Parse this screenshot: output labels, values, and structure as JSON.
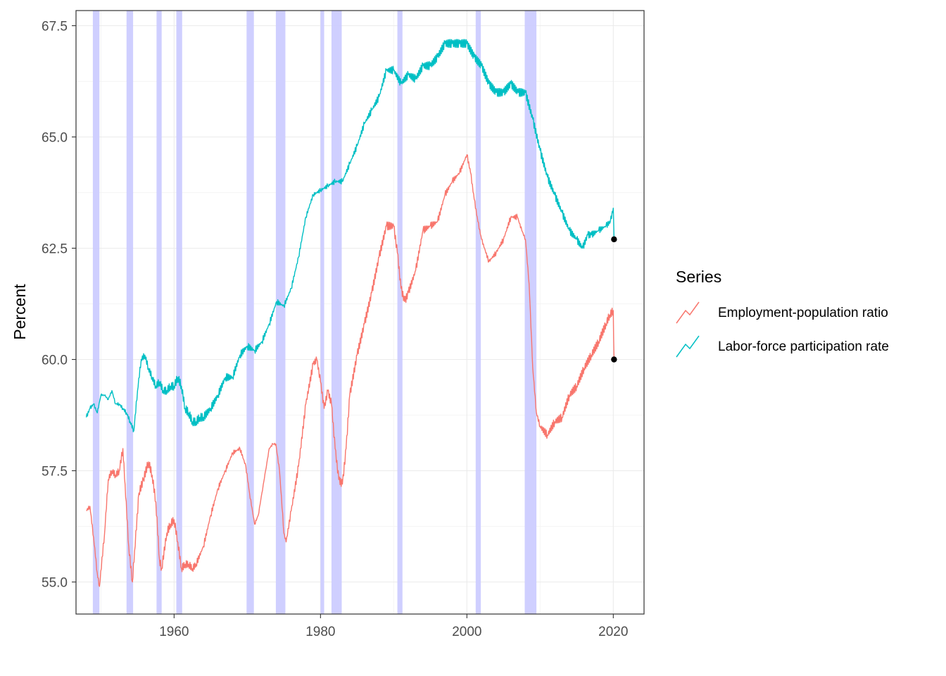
{
  "chart_data": {
    "type": "line",
    "title": "",
    "xlabel": "",
    "ylabel": "Percent",
    "xlim": [
      1946.6,
      2024.2
    ],
    "ylim": [
      54.28,
      67.84
    ],
    "x_ticks": [
      1960,
      1980,
      2000,
      2020
    ],
    "x_tick_labels": [
      "1960",
      "1980",
      "2000",
      "2020"
    ],
    "y_ticks": [
      55.0,
      57.5,
      60.0,
      62.5,
      65.0,
      67.5
    ],
    "y_tick_labels": [
      "55.0",
      "57.5",
      "60.0",
      "62.5",
      "65.0",
      "67.5"
    ],
    "grid": true,
    "legend": {
      "title": "Series",
      "position": "right"
    },
    "recession_color": "#ccccff",
    "recessions": [
      [
        1948.9,
        1949.8
      ],
      [
        1953.5,
        1954.4
      ],
      [
        1957.6,
        1958.3
      ],
      [
        1960.3,
        1961.1
      ],
      [
        1969.9,
        1970.9
      ],
      [
        1973.9,
        1975.2
      ],
      [
        1980.0,
        1980.5
      ],
      [
        1981.5,
        1982.9
      ],
      [
        1990.5,
        1991.2
      ],
      [
        2001.2,
        2001.9
      ],
      [
        2007.9,
        2009.5
      ]
    ],
    "series": [
      {
        "name": "Employment-population ratio",
        "color": "#f8766d",
        "x": [
          1948.0,
          1948.5,
          1949.0,
          1949.5,
          1949.8,
          1950.5,
          1951.0,
          1951.5,
          1952.0,
          1952.5,
          1953.0,
          1953.3,
          1953.8,
          1954.3,
          1954.6,
          1955.2,
          1955.8,
          1956.5,
          1957.0,
          1957.5,
          1958.0,
          1958.3,
          1959.0,
          1959.5,
          1960.0,
          1960.5,
          1961.0,
          1961.5,
          1962.0,
          1962.5,
          1963.0,
          1964.0,
          1965.0,
          1966.0,
          1967.0,
          1968.0,
          1969.0,
          1969.8,
          1970.3,
          1971.0,
          1971.5,
          1972.0,
          1972.5,
          1973.0,
          1973.5,
          1973.9,
          1974.4,
          1975.0,
          1975.3,
          1976.0,
          1977.0,
          1978.0,
          1979.0,
          1979.5,
          1980.0,
          1980.5,
          1981.0,
          1981.5,
          1982.0,
          1982.5,
          1983.0,
          1983.5,
          1984.0,
          1985.0,
          1986.0,
          1987.0,
          1988.0,
          1989.0,
          1990.0,
          1990.5,
          1991.0,
          1991.5,
          1992.0,
          1993.0,
          1994.0,
          1995.0,
          1996.0,
          1997.0,
          1998.0,
          1999.0,
          2000.0,
          2000.5,
          2001.0,
          2001.5,
          2002.0,
          2003.0,
          2004.0,
          2005.0,
          2006.0,
          2006.9,
          2007.5,
          2008.0,
          2008.5,
          2009.0,
          2009.5,
          2010.0,
          2011.0,
          2012.0,
          2013.0,
          2014.0,
          2015.0,
          2016.0,
          2017.0,
          2018.0,
          2019.0,
          2019.5,
          2020.0,
          2020.1
        ],
        "values": [
          56.6,
          56.7,
          56.0,
          55.2,
          54.9,
          56.1,
          57.3,
          57.5,
          57.4,
          57.5,
          58.0,
          57.2,
          55.8,
          55.0,
          55.7,
          57.0,
          57.3,
          57.7,
          57.4,
          56.8,
          55.5,
          55.3,
          56.1,
          56.3,
          56.4,
          55.9,
          55.3,
          55.4,
          55.4,
          55.3,
          55.4,
          55.8,
          56.5,
          57.1,
          57.5,
          57.9,
          58.0,
          57.6,
          57.0,
          56.3,
          56.5,
          57.0,
          57.5,
          58.0,
          58.1,
          58.1,
          57.5,
          56.1,
          55.9,
          56.6,
          57.6,
          59.0,
          59.9,
          60.0,
          59.5,
          58.9,
          59.3,
          59.0,
          58.0,
          57.3,
          57.2,
          58.0,
          59.2,
          60.1,
          60.8,
          61.5,
          62.3,
          63.0,
          63.0,
          62.4,
          61.6,
          61.3,
          61.5,
          62.0,
          62.9,
          63.0,
          63.1,
          63.7,
          64.0,
          64.2,
          64.6,
          64.2,
          63.6,
          63.1,
          62.7,
          62.2,
          62.4,
          62.7,
          63.2,
          63.2,
          62.9,
          62.7,
          61.7,
          59.8,
          58.8,
          58.5,
          58.3,
          58.6,
          58.7,
          59.2,
          59.4,
          59.8,
          60.1,
          60.4,
          60.8,
          61.0,
          61.1,
          60.0
        ]
      },
      {
        "name": "Labor-force participation rate",
        "color": "#00bfc4",
        "x": [
          1948.0,
          1948.5,
          1949.0,
          1949.5,
          1950.0,
          1950.5,
          1951.0,
          1951.5,
          1952.0,
          1952.5,
          1953.0,
          1953.5,
          1954.0,
          1954.5,
          1955.0,
          1955.5,
          1956.0,
          1956.5,
          1957.0,
          1957.5,
          1958.0,
          1958.5,
          1959.0,
          1959.5,
          1960.0,
          1960.5,
          1961.0,
          1961.5,
          1962.0,
          1962.5,
          1963.0,
          1963.5,
          1964.0,
          1965.0,
          1966.0,
          1967.0,
          1968.0,
          1969.0,
          1970.0,
          1971.0,
          1972.0,
          1973.0,
          1974.0,
          1975.0,
          1976.0,
          1977.0,
          1978.0,
          1979.0,
          1980.0,
          1981.0,
          1982.0,
          1983.0,
          1984.0,
          1985.0,
          1986.0,
          1987.0,
          1988.0,
          1989.0,
          1990.0,
          1991.0,
          1992.0,
          1993.0,
          1994.0,
          1995.0,
          1996.0,
          1997.0,
          1998.0,
          1999.0,
          2000.0,
          2001.0,
          2002.0,
          2003.0,
          2004.0,
          2005.0,
          2006.0,
          2007.0,
          2008.0,
          2009.0,
          2010.0,
          2011.0,
          2012.0,
          2013.0,
          2014.0,
          2015.0,
          2015.8,
          2016.5,
          2017.0,
          2018.0,
          2019.0,
          2019.6,
          2020.0,
          2020.1
        ],
        "values": [
          58.7,
          58.9,
          59.0,
          58.8,
          59.2,
          59.2,
          59.1,
          59.3,
          59.0,
          59.0,
          58.9,
          58.8,
          58.6,
          58.4,
          59.3,
          60.0,
          60.1,
          59.8,
          59.6,
          59.4,
          59.5,
          59.3,
          59.3,
          59.4,
          59.4,
          59.6,
          59.4,
          58.9,
          58.8,
          58.6,
          58.6,
          58.7,
          58.7,
          58.9,
          59.2,
          59.6,
          59.6,
          60.1,
          60.3,
          60.2,
          60.4,
          60.8,
          61.3,
          61.2,
          61.6,
          62.3,
          63.2,
          63.7,
          63.8,
          63.9,
          64.0,
          64.0,
          64.4,
          64.8,
          65.3,
          65.6,
          65.9,
          66.5,
          66.5,
          66.2,
          66.4,
          66.3,
          66.6,
          66.6,
          66.8,
          67.1,
          67.1,
          67.1,
          67.1,
          66.8,
          66.6,
          66.2,
          66.0,
          66.0,
          66.2,
          66.0,
          66.0,
          65.4,
          64.7,
          64.1,
          63.7,
          63.3,
          62.9,
          62.7,
          62.5,
          62.8,
          62.8,
          62.9,
          63.0,
          63.1,
          63.4,
          62.7
        ]
      }
    ],
    "endpoints": [
      {
        "x": 2020.1,
        "value": 62.7
      },
      {
        "x": 2020.1,
        "value": 60.0
      }
    ],
    "endpoint_color": "#000000"
  }
}
